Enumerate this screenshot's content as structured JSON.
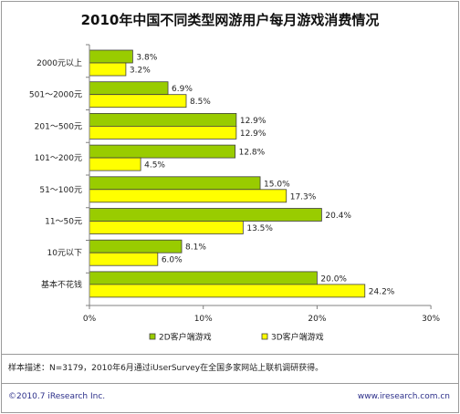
{
  "title": "2010年中国不同类型网游用户每月游戏消费情况",
  "footnote": "样本描述：N=3179，2010年6月通过iUserSurvey在全国多家网站上联机调研获得。",
  "copyright": "©2010.7 iResearch Inc.",
  "website": "www.iresearch.com.cn",
  "colors": {
    "series_2d": "#99cc00",
    "series_3d": "#ffff00",
    "bar_border": "#404040",
    "axis": "#808080",
    "footer_text": "#2c2f8a"
  },
  "chart_data": {
    "type": "bar",
    "orientation": "horizontal",
    "title": "2010年中国不同类型网游用户每月游戏消费情况",
    "categories": [
      "2000元以上",
      "501～2000元",
      "201～500元",
      "101～200元",
      "51～100元",
      "11～50元",
      "10元以下",
      "基本不花钱"
    ],
    "series": [
      {
        "name": "2D客户端游戏",
        "values": [
          3.8,
          6.9,
          12.9,
          12.8,
          15.0,
          20.4,
          8.1,
          20.0
        ],
        "labels": [
          "3.8%",
          "6.9%",
          "12.9%",
          "12.8%",
          "15.0%",
          "20.4%",
          "8.1%",
          "20.0%"
        ]
      },
      {
        "name": "3D客户端游戏",
        "values": [
          3.2,
          8.5,
          12.9,
          4.5,
          17.3,
          13.5,
          6.0,
          24.2
        ],
        "labels": [
          "3.2%",
          "8.5%",
          "12.9%",
          "4.5%",
          "17.3%",
          "13.5%",
          "6.0%",
          "24.2%"
        ]
      }
    ],
    "xlim": [
      0,
      30
    ],
    "xticks": [
      "0%",
      "10%",
      "20%",
      "30%"
    ],
    "grid": false,
    "legend_position": "bottom"
  }
}
